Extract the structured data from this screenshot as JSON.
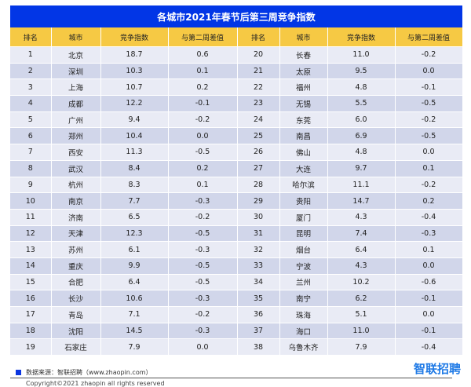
{
  "title": "各城市2021年春节后第三周竞争指数",
  "headers": [
    "排名",
    "城市",
    "竞争指数",
    "与第二周差值",
    "排名",
    "城市",
    "竞争指数",
    "与第二周差值"
  ],
  "rows": [
    [
      "1",
      "北京",
      "18.7",
      "0.6",
      "20",
      "长春",
      "11.0",
      "-0.2"
    ],
    [
      "2",
      "深圳",
      "10.3",
      "0.1",
      "21",
      "太原",
      "9.5",
      "0.0"
    ],
    [
      "3",
      "上海",
      "10.7",
      "0.2",
      "22",
      "福州",
      "4.8",
      "-0.1"
    ],
    [
      "4",
      "成都",
      "12.2",
      "-0.1",
      "23",
      "无锡",
      "5.5",
      "-0.5"
    ],
    [
      "5",
      "广州",
      "9.4",
      "-0.2",
      "24",
      "东莞",
      "6.0",
      "-0.2"
    ],
    [
      "6",
      "郑州",
      "10.4",
      "0.0",
      "25",
      "南昌",
      "6.9",
      "-0.5"
    ],
    [
      "7",
      "西安",
      "11.3",
      "-0.5",
      "26",
      "佛山",
      "4.8",
      "0.0"
    ],
    [
      "8",
      "武汉",
      "8.4",
      "0.2",
      "27",
      "大连",
      "9.7",
      "0.1"
    ],
    [
      "9",
      "杭州",
      "8.3",
      "0.1",
      "28",
      "哈尔滨",
      "11.1",
      "-0.2"
    ],
    [
      "10",
      "南京",
      "7.7",
      "-0.3",
      "29",
      "贵阳",
      "14.7",
      "0.2"
    ],
    [
      "11",
      "济南",
      "6.5",
      "-0.2",
      "30",
      "厦门",
      "4.3",
      "-0.4"
    ],
    [
      "12",
      "天津",
      "12.3",
      "-0.5",
      "31",
      "昆明",
      "7.4",
      "-0.3"
    ],
    [
      "13",
      "苏州",
      "6.1",
      "-0.3",
      "32",
      "烟台",
      "6.4",
      "0.1"
    ],
    [
      "14",
      "重庆",
      "9.9",
      "-0.5",
      "33",
      "宁波",
      "4.3",
      "0.0"
    ],
    [
      "15",
      "合肥",
      "6.4",
      "-0.5",
      "34",
      "兰州",
      "10.2",
      "-0.6"
    ],
    [
      "16",
      "长沙",
      "10.6",
      "-0.3",
      "35",
      "南宁",
      "6.2",
      "-0.1"
    ],
    [
      "17",
      "青岛",
      "7.1",
      "-0.2",
      "36",
      "珠海",
      "5.1",
      "0.0"
    ],
    [
      "18",
      "沈阳",
      "14.5",
      "-0.3",
      "37",
      "海口",
      "11.0",
      "-0.1"
    ],
    [
      "19",
      "石家庄",
      "7.9",
      "0.0",
      "38",
      "乌鲁木齐",
      "7.9",
      "-0.4"
    ]
  ],
  "footer": {
    "source": "数据来源：智联招聘（www.zhaopin.com）",
    "copyright": "Copyright©2021 zhaopin all rights reserved",
    "logo": "智联招聘"
  },
  "colors": {
    "title_bg": "#0236e6",
    "header_bg": "#f6c944",
    "row_odd": "#e9ebf5",
    "row_even": "#d1d6ea"
  }
}
